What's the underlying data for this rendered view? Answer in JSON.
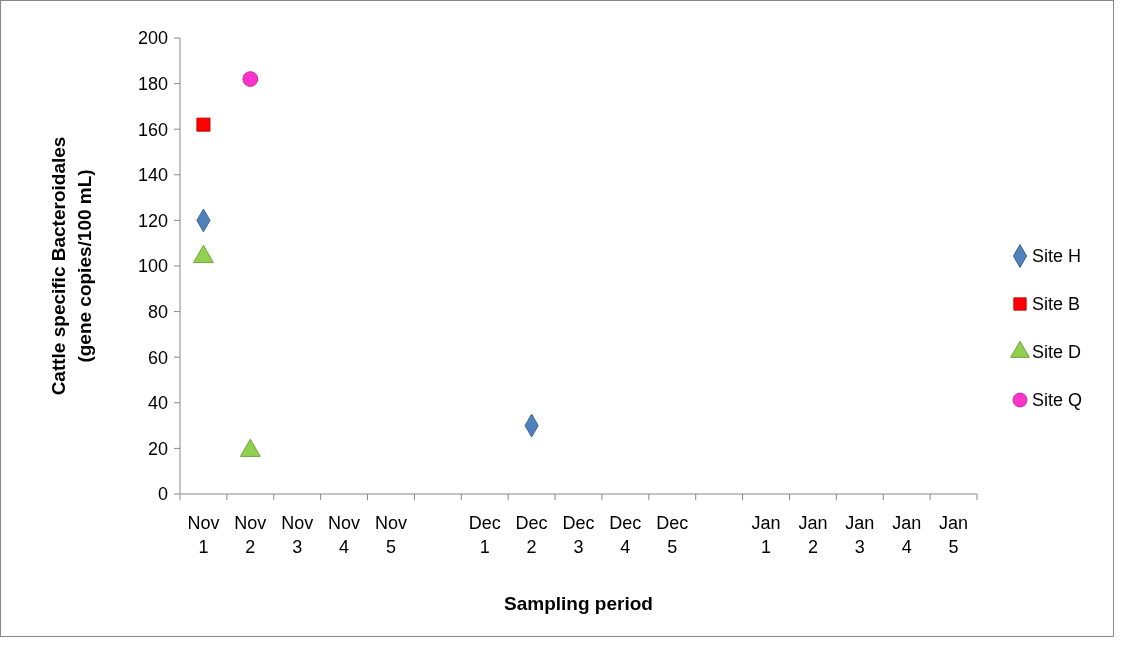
{
  "chart_data": {
    "type": "scatter",
    "xlabel": "Sampling period",
    "ylabel": "Cattle specific Bacteroidales (gene copies/100 mL)",
    "categories": [
      "Nov 1",
      "Nov 2",
      "Nov 3",
      "Nov 4",
      "Nov 5",
      null,
      "Dec 1",
      "Dec 2",
      "Dec 3",
      "Dec 4",
      "Dec 5",
      null,
      "Jan 1",
      "Jan 2",
      "Jan 3",
      "Jan 4",
      "Jan 5"
    ],
    "ylim": [
      0,
      200
    ],
    "yticks": [
      0,
      20,
      40,
      60,
      80,
      100,
      120,
      140,
      160,
      180,
      200
    ],
    "grid": false,
    "legend": "right",
    "series": [
      {
        "name": "Site H",
        "color": "#4f81bd",
        "marker": "diamond",
        "values": [
          120,
          null,
          null,
          null,
          null,
          null,
          null,
          30,
          null,
          null,
          null,
          null,
          null,
          null,
          null,
          null,
          null
        ]
      },
      {
        "name": "Site B",
        "color": "#ff0000",
        "marker": "square",
        "values": [
          162,
          null,
          null,
          null,
          null,
          null,
          null,
          null,
          null,
          null,
          null,
          null,
          null,
          null,
          null,
          null,
          null
        ]
      },
      {
        "name": "Site D",
        "color": "#92d050",
        "marker": "triangle",
        "values": [
          104,
          19,
          null,
          null,
          null,
          null,
          null,
          null,
          null,
          null,
          null,
          null,
          null,
          null,
          null,
          null,
          null
        ]
      },
      {
        "name": "Site Q",
        "color": "#ff33cc",
        "marker": "circle",
        "values": [
          null,
          182,
          null,
          null,
          null,
          null,
          null,
          null,
          null,
          null,
          null,
          null,
          null,
          null,
          null,
          null,
          null
        ]
      }
    ]
  }
}
